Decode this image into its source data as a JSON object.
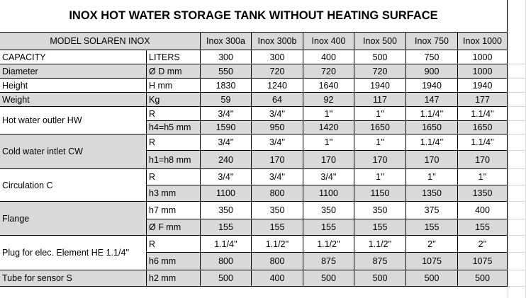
{
  "title": "INOX HOT WATER STORAGE TANK WITHOUT HEATING SURFACE",
  "table": {
    "model": "MODEL SOLAREN INOX",
    "columns": [
      "Inox 300a",
      "Inox 300b",
      "Inox 400",
      "Inox 500",
      "Inox 750",
      "Inox 1000"
    ],
    "rows": [
      {
        "label": "CAPACITY",
        "lines": [
          {
            "unit": "LITERS",
            "values": [
              300,
              300,
              400,
              500,
              750,
              1000
            ]
          }
        ]
      },
      {
        "label": "Diameter",
        "lines": [
          {
            "unit": "Ø D mm",
            "values": [
              550,
              720,
              720,
              720,
              900,
              1000
            ]
          }
        ]
      },
      {
        "label": "Height",
        "lines": [
          {
            "unit": "H mm",
            "values": [
              1830,
              1240,
              1640,
              1940,
              1940,
              1940
            ]
          }
        ]
      },
      {
        "label": "Weight",
        "lines": [
          {
            "unit": "Kg",
            "values": [
              59,
              64,
              92,
              117,
              147,
              177
            ]
          }
        ]
      },
      {
        "label": "Hot water outler HW",
        "lines": [
          {
            "unit": "R",
            "values": [
              "3/4''",
              "3/4''",
              "1''",
              "1''",
              "1.1/4''",
              "1.1/4''"
            ]
          },
          {
            "unit": "h4=h5 mm",
            "values": [
              1590,
              950,
              1420,
              1650,
              1650,
              1650
            ]
          }
        ]
      },
      {
        "label": "Cold water intlet CW",
        "lines": [
          {
            "unit": "R",
            "values": [
              "3/4''",
              "3/4''",
              "1''",
              "1''",
              "1.1/4''",
              "1.1/4''"
            ]
          },
          {
            "unit": "h1=h8 mm",
            "values": [
              240,
              170,
              170,
              170,
              170,
              170
            ]
          }
        ]
      },
      {
        "label": "Circulation C",
        "lines": [
          {
            "unit": "R",
            "values": [
              "3/4''",
              "3/4''",
              "3/4''",
              "1''",
              "1''",
              "1''"
            ]
          },
          {
            "unit": "h3 mm",
            "values": [
              1100,
              800,
              1100,
              1150,
              1350,
              1350
            ]
          }
        ]
      },
      {
        "label": "Flange",
        "lines": [
          {
            "unit": "h7 mm",
            "values": [
              350,
              350,
              350,
              350,
              375,
              400
            ]
          },
          {
            "unit": "Ø F mm",
            "values": [
              155,
              155,
              155,
              155,
              155,
              155
            ]
          }
        ]
      },
      {
        "label": "Plug for elec. Element HE 1.1/4''",
        "lines": [
          {
            "unit": "R",
            "values": [
              "1.1/4''",
              "1.1/2''",
              "1.1/2''",
              "1.1/2''",
              "2''",
              "2''"
            ]
          },
          {
            "unit": "h6 mm",
            "values": [
              800,
              800,
              875,
              875,
              1075,
              1075
            ]
          }
        ]
      },
      {
        "label": "Tube for sensor S",
        "lines": [
          {
            "unit": "h2 mm",
            "values": [
              500,
              400,
              500,
              500,
              500,
              500
            ]
          }
        ]
      }
    ]
  }
}
